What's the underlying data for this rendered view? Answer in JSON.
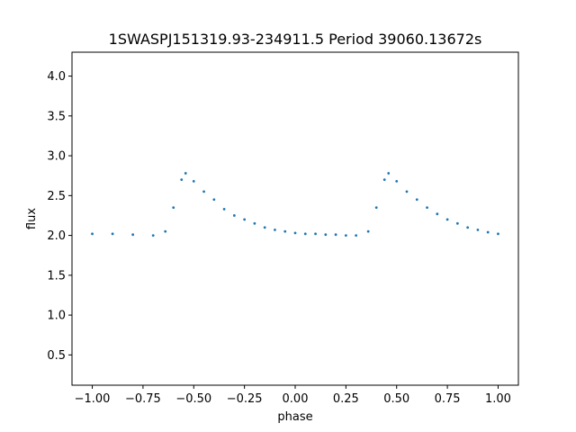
{
  "chart_data": {
    "type": "scatter",
    "title": "1SWASPJ151319.93-234911.5 Period 39060.13672s",
    "xlabel": "phase",
    "ylabel": "flux",
    "xlim": [
      -1.1,
      1.1
    ],
    "ylim": [
      0.12,
      4.3
    ],
    "x_ticks": [
      -1.0,
      -0.75,
      -0.5,
      -0.25,
      0.0,
      0.25,
      0.5,
      0.75,
      1.0
    ],
    "x_tick_labels": [
      "−1.00",
      "−0.75",
      "−0.50",
      "−0.25",
      "0.00",
      "0.25",
      "0.50",
      "0.75",
      "1.00"
    ],
    "y_ticks": [
      0.5,
      1.0,
      1.5,
      2.0,
      2.5,
      3.0,
      3.5,
      4.0
    ],
    "y_tick_labels": [
      "0.5",
      "1.0",
      "1.5",
      "2.0",
      "2.5",
      "3.0",
      "3.5",
      "4.0"
    ],
    "point_color": "#1f77b4",
    "grid": false,
    "series": [
      {
        "x": [
          -1.0,
          -0.9,
          -0.8,
          -0.7,
          -0.64,
          -0.6,
          -0.56,
          -0.54,
          -0.5,
          -0.45,
          -0.4,
          -0.35,
          -0.3,
          -0.25,
          -0.2,
          -0.15,
          -0.1,
          -0.05,
          0.0,
          0.05,
          0.1,
          0.15,
          0.2,
          0.25,
          0.3,
          0.36,
          0.4,
          0.44,
          0.46,
          0.5,
          0.55,
          0.6,
          0.65,
          0.7,
          0.75,
          0.8,
          0.85,
          0.9,
          0.95,
          1.0
        ],
        "y": [
          2.02,
          2.02,
          2.01,
          2.0,
          2.05,
          2.35,
          2.7,
          2.78,
          2.68,
          2.55,
          2.45,
          2.33,
          2.25,
          2.2,
          2.15,
          2.1,
          2.07,
          2.05,
          2.03,
          2.02,
          2.02,
          2.01,
          2.01,
          2.0,
          2.0,
          2.05,
          2.35,
          2.7,
          2.78,
          2.68,
          2.55,
          2.45,
          2.35,
          2.27,
          2.2,
          2.15,
          2.1,
          2.07,
          2.04,
          2.02
        ]
      }
    ]
  }
}
